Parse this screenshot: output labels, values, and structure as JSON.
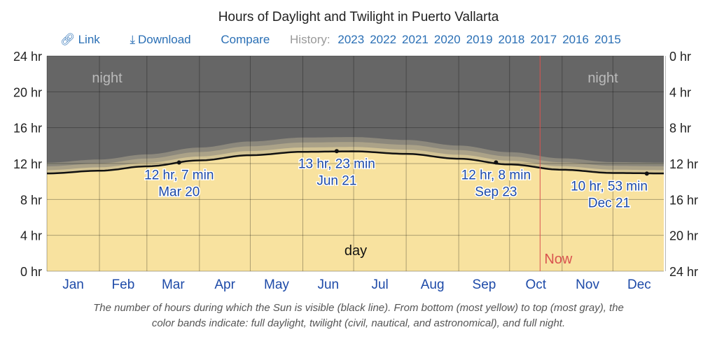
{
  "title": "Hours of Daylight and Twilight in Puerto Vallarta",
  "toolbar": {
    "link": "Link",
    "download": "Download",
    "compare": "Compare",
    "history_label": "History:",
    "years": [
      "2023",
      "2022",
      "2021",
      "2020",
      "2019",
      "2018",
      "2017",
      "2016",
      "2015"
    ],
    "link_icon": "link-icon",
    "download_icon": "download-icon"
  },
  "caption_line1": "The number of hours during which the Sun is visible (black line). From bottom (most yellow) to top (most gray), the",
  "caption_line2": "color bands indicate: full daylight, twilight (civil, nautical, and astronomical), and full night.",
  "chart_data": {
    "type": "area",
    "title": "Hours of Daylight and Twilight in Puerto Vallarta",
    "x_unit": "day of year",
    "daylight_points": {
      "day": [
        1,
        32,
        60,
        91,
        121,
        152,
        182,
        213,
        244,
        274,
        305,
        335,
        365
      ],
      "hours": [
        10.9,
        11.2,
        11.69,
        12.35,
        12.93,
        13.31,
        13.36,
        13.08,
        12.54,
        11.9,
        11.31,
        10.95,
        10.9
      ]
    },
    "twilight_cumulative_offsets_hours": {
      "civil": 0.42,
      "nautical": 0.9,
      "astronomical": 1.38
    },
    "months": [
      "Jan",
      "Feb",
      "Mar",
      "Apr",
      "May",
      "Jun",
      "Jul",
      "Aug",
      "Sep",
      "Oct",
      "Nov",
      "Dec"
    ],
    "left_ticks": [
      "0 hr",
      "4 hr",
      "8 hr",
      "12 hr",
      "16 hr",
      "20 hr",
      "24 hr"
    ],
    "right_ticks": [
      "24 hr",
      "20 hr",
      "16 hr",
      "12 hr",
      "8 hr",
      "4 hr",
      "0 hr"
    ],
    "ylim": [
      0,
      24
    ],
    "annotations": [
      {
        "day": 79,
        "hours": 12.12,
        "line1": "12 hr, 7 min",
        "line2": "Mar 20"
      },
      {
        "day": 172,
        "hours": 13.38,
        "line1": "13 hr, 23 min",
        "line2": "Jun 21"
      },
      {
        "day": 266,
        "hours": 12.13,
        "line1": "12 hr, 8 min",
        "line2": "Sep 23"
      },
      {
        "day": 355,
        "hours": 10.88,
        "line1": "10 hr, 53 min",
        "line2": "Dec 21"
      }
    ],
    "region_labels": {
      "night": "night",
      "day": "day"
    },
    "now": {
      "day": 292,
      "label": "Now"
    },
    "colors": {
      "day": "#f8e29f",
      "civil": "#d1c294",
      "nautical": "#aba288",
      "astronomical": "#8c887c",
      "night": "#666666",
      "line": "#111111",
      "now": "#d9534f",
      "text": "#1d4aa8"
    }
  }
}
